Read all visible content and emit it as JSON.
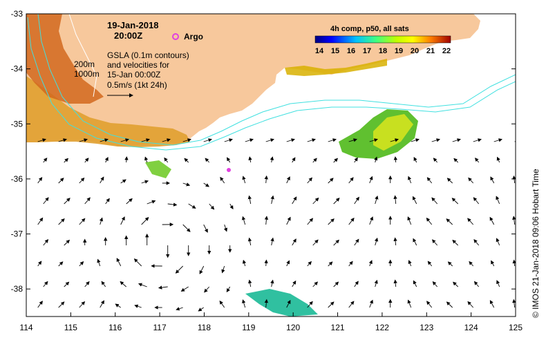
{
  "title": {
    "date": "19-Jan-2018",
    "time": "20:00Z"
  },
  "legend_argo": {
    "label": "Argo",
    "color": "#e040e0"
  },
  "colorbar": {
    "title": "4h comp, p50, all sats",
    "ticks": [
      "14",
      "15",
      "16",
      "17",
      "18",
      "19",
      "20",
      "21",
      "22"
    ],
    "colors": [
      "#00007f",
      "#0000ff",
      "#0080ff",
      "#00ffff",
      "#80ff80",
      "#ffff00",
      "#ff8000",
      "#ff0000",
      "#7f0000"
    ]
  },
  "contours_legend": {
    "c200": "200m",
    "c1000": "1000m"
  },
  "gsla_note": {
    "line1": "GSLA (0.1m contours)",
    "line2": "and velocities for",
    "line3": "15-Jan 00:00Z",
    "line4": "0.5m/s (1kt 24h)"
  },
  "axes": {
    "x_ticks": [
      "114",
      "115",
      "116",
      "117",
      "118",
      "119",
      "120",
      "121",
      "122",
      "123",
      "124",
      "125"
    ],
    "y_ticks": [
      "-33",
      "-34",
      "-35",
      "-36",
      "-37",
      "-38"
    ],
    "lon_range": [
      114,
      125
    ],
    "lat_range": [
      -38.5,
      -33
    ]
  },
  "credit": "© IMOS 21-Jan-2018 09:06 Hobart Time",
  "colors": {
    "land": "#f7c89c",
    "bathy": "#40e0e0",
    "warm_coast": "#d2691e"
  }
}
